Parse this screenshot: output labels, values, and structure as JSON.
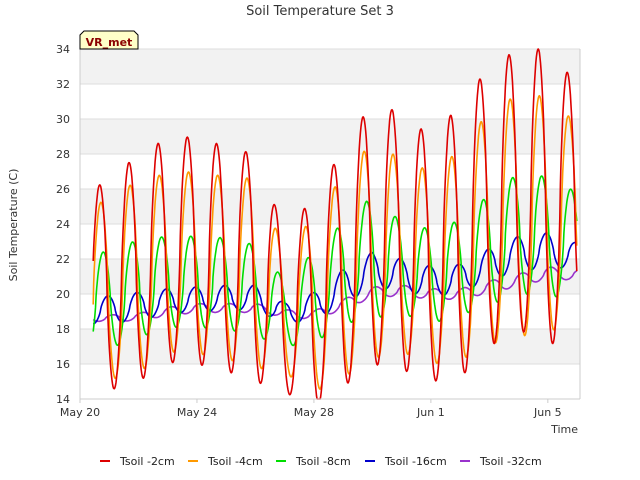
{
  "chart_data": {
    "type": "line",
    "title": "Soil Temperature Set 3",
    "xlabel": "Time",
    "ylabel": "Soil Temperature (C)",
    "badge": "VR_met",
    "ylim": [
      14,
      34
    ],
    "yticks": [
      14,
      16,
      18,
      20,
      22,
      24,
      26,
      28,
      30,
      32,
      34
    ],
    "xlim_days": [
      0,
      17.1
    ],
    "xticks": [
      {
        "day": 0,
        "label": "May 20"
      },
      {
        "day": 4,
        "label": "May 24"
      },
      {
        "day": 8,
        "label": "May 28"
      },
      {
        "day": 12,
        "label": "Jun 1"
      },
      {
        "day": 16,
        "label": "Jun 5"
      }
    ],
    "grid": true,
    "legend_position": "bottom",
    "series": [
      {
        "name": "Tsoil -2cm",
        "color": "#dd0000",
        "mean": [
          20.0,
          20.5,
          21.5,
          22.5,
          22.5,
          22.0,
          21.5,
          19.0,
          19.5,
          21.5,
          23.5,
          23.0,
          22.0,
          23.0,
          25.0,
          26.0,
          25.5,
          25.0
        ],
        "amp": [
          5.7,
          6.0,
          6.5,
          6.4,
          6.5,
          6.4,
          6.5,
          4.6,
          6.0,
          6.8,
          7.5,
          7.3,
          7.0,
          7.8,
          8.0,
          8.0,
          8.5,
          7.0
        ],
        "offset": 0,
        "lag": 0
      },
      {
        "name": "Tsoil -4cm",
        "color": "#ff9900",
        "mean": [
          19.8,
          20.3,
          21.0,
          21.8,
          21.8,
          21.5,
          21.2,
          19.0,
          19.4,
          21.0,
          22.5,
          22.2,
          21.5,
          22.2,
          23.8,
          24.5,
          24.5,
          24.3
        ],
        "amp": [
          4.8,
          5.2,
          5.5,
          5.1,
          5.2,
          5.2,
          5.4,
          3.5,
          5.0,
          5.8,
          6.2,
          5.5,
          5.5,
          6.0,
          6.7,
          6.9,
          6.8,
          5.4
        ],
        "offset": 0,
        "lag": 0.04
      },
      {
        "name": "Tsoil -8cm",
        "color": "#00dd00",
        "mean": [
          19.4,
          19.7,
          20.3,
          20.7,
          20.7,
          20.6,
          20.2,
          18.9,
          19.8,
          21.2,
          22.1,
          21.5,
          21.0,
          21.5,
          22.5,
          23.5,
          23.2,
          23.0
        ],
        "amp": [
          2.6,
          2.8,
          2.8,
          2.6,
          2.6,
          2.6,
          2.6,
          1.9,
          2.6,
          2.9,
          3.5,
          2.6,
          2.7,
          2.7,
          3.2,
          3.4,
          3.5,
          2.8
        ],
        "offset": 0,
        "lag": 0.12
      },
      {
        "name": "Tsoil -16cm",
        "color": "#0000cc",
        "mean": [
          19.0,
          19.1,
          19.3,
          19.6,
          19.7,
          19.8,
          19.8,
          18.9,
          19.3,
          20.4,
          21.4,
          21.1,
          20.7,
          20.9,
          21.7,
          22.3,
          22.5,
          22.2
        ],
        "amp": [
          0.7,
          0.8,
          0.8,
          0.7,
          0.7,
          0.7,
          0.7,
          0.6,
          0.8,
          1.0,
          1.0,
          0.9,
          0.9,
          0.8,
          0.9,
          1.0,
          1.0,
          0.7
        ],
        "offset": 0,
        "lag": 0.28
      },
      {
        "name": "Tsoil -32cm",
        "color": "#9933cc",
        "mean": [
          18.7,
          18.6,
          18.7,
          19.0,
          19.2,
          19.2,
          19.2,
          18.9,
          18.8,
          19.4,
          20.1,
          20.2,
          20.0,
          20.0,
          20.4,
          20.8,
          21.2,
          21.1
        ],
        "amp": [
          0.2,
          0.2,
          0.2,
          0.25,
          0.25,
          0.25,
          0.25,
          0.2,
          0.25,
          0.3,
          0.3,
          0.3,
          0.3,
          0.3,
          0.35,
          0.35,
          0.35,
          0.3
        ],
        "offset": 0,
        "lag": 0.45
      }
    ]
  }
}
